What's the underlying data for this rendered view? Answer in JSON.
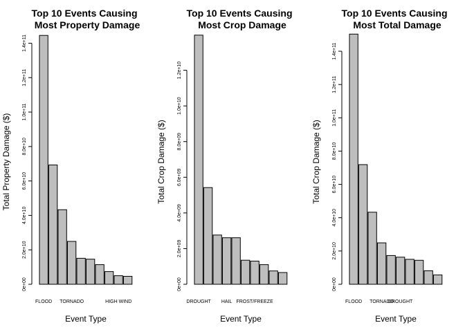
{
  "chart_data": [
    {
      "type": "bar",
      "title": [
        "Top 10 Events Causing",
        "Most Property Damage"
      ],
      "xlabel": "Event Type",
      "ylabel": "Total Property Damage ($)",
      "ylim": [
        0,
        145000000000
      ],
      "yticks": [
        0,
        20000000000,
        40000000000,
        60000000000,
        80000000000,
        100000000000,
        120000000000,
        140000000000
      ],
      "ytick_labels": [
        "0e+00",
        "2.0e+10",
        "4.0e+10",
        "6.0e+10",
        "8.0e+10",
        "1.0e+11",
        "1.2e+11",
        "1.4e+11"
      ],
      "category_labels": [
        "FLOOD",
        "",
        "",
        "TORNADO",
        "",
        "",
        "",
        "",
        "HIGH WIND",
        ""
      ],
      "values": [
        144500000000,
        69300000000,
        43300000000,
        24900000000,
        15100000000,
        14600000000,
        11400000000,
        7400000000,
        5000000000,
        4600000000
      ]
    },
    {
      "type": "bar",
      "title": [
        "Top 10 Events Causing",
        "Most Crop Damage"
      ],
      "xlabel": "Event Type",
      "ylabel": "Total Crop Damage ($)",
      "ylim": [
        0,
        14000000000
      ],
      "yticks": [
        0,
        2000000000,
        4000000000,
        6000000000,
        8000000000,
        10000000000,
        12000000000
      ],
      "ytick_labels": [
        "0e+00",
        "2.0e+09",
        "4.0e+09",
        "6.0e+09",
        "8.0e+09",
        "1.0e+10",
        "1.2e+10"
      ],
      "category_labels": [
        "DROUGHT",
        "",
        "",
        "HAIL",
        "",
        "",
        "FROST/FREEZE",
        "",
        "",
        ""
      ],
      "values": [
        13970000000,
        5420000000,
        2760000000,
        2610000000,
        2610000000,
        1350000000,
        1300000000,
        1100000000,
        750000000,
        660000000
      ]
    },
    {
      "type": "bar",
      "title": [
        "Top 10 Events Causing",
        "Most Total Damage"
      ],
      "xlabel": "Event Type",
      "ylabel": "Total Crop Damage ($)",
      "ylim": [
        0,
        150000000000
      ],
      "yticks": [
        0,
        20000000000,
        40000000000,
        60000000000,
        80000000000,
        100000000000,
        120000000000,
        140000000000
      ],
      "ytick_labels": [
        "0e+00",
        "2.0e+10",
        "4.0e+10",
        "6.0e+10",
        "8.0e+10",
        "1.0e+11",
        "1.2e+11",
        "1.4e+11"
      ],
      "category_labels": [
        "FLOOD",
        "",
        "",
        "TORNADO",
        "",
        "DROUGHT",
        "",
        "",
        "",
        ""
      ],
      "values": [
        150300000000,
        71900000000,
        43300000000,
        24900000000,
        17300000000,
        16300000000,
        15000000000,
        14400000000,
        8100000000,
        5600000000
      ]
    }
  ]
}
